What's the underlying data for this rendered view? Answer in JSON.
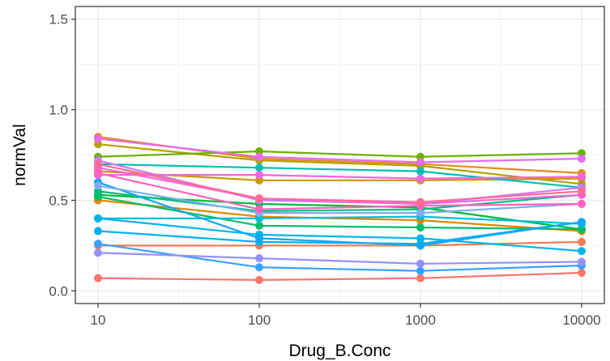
{
  "chart_data": {
    "type": "line",
    "title": "",
    "xlabel": "Drug_B.Conc",
    "ylabel": "normVal",
    "x_scale": "log10",
    "x": [
      10,
      100,
      1000,
      10000
    ],
    "x_tick_labels": [
      "10",
      "100",
      "1000",
      "10000"
    ],
    "y_ticks": [
      0.0,
      0.5,
      1.0,
      1.5
    ],
    "y_tick_labels": [
      "0.0",
      "0.5",
      "1.0",
      "1.5"
    ],
    "ylim": [
      -0.07,
      1.57
    ],
    "xlim": [
      10,
      10000
    ],
    "grid": true,
    "legend": "none",
    "series": [
      {
        "color": "#F8766D",
        "values": [
          0.07,
          0.06,
          0.07,
          0.1
        ]
      },
      {
        "color": "#F07D55",
        "values": [
          0.25,
          0.25,
          0.25,
          0.27
        ]
      },
      {
        "color": "#E58700",
        "values": [
          0.5,
          0.41,
          0.39,
          0.33
        ]
      },
      {
        "color": "#E08B20",
        "values": [
          0.85,
          0.73,
          0.7,
          0.65
        ]
      },
      {
        "color": "#C99800",
        "values": [
          0.66,
          0.61,
          0.61,
          0.62
        ]
      },
      {
        "color": "#B4A000",
        "values": [
          0.81,
          0.72,
          0.69,
          0.59
        ]
      },
      {
        "color": "#6BB100",
        "values": [
          0.74,
          0.77,
          0.74,
          0.76
        ]
      },
      {
        "color": "#00BA38",
        "values": [
          0.53,
          0.48,
          0.46,
          0.34
        ]
      },
      {
        "color": "#00BE6C",
        "values": [
          0.52,
          0.36,
          0.35,
          0.34
        ]
      },
      {
        "color": "#00BF7D",
        "values": [
          0.55,
          0.44,
          0.45,
          0.53
        ]
      },
      {
        "color": "#00C0AF",
        "values": [
          0.7,
          0.68,
          0.66,
          0.57
        ]
      },
      {
        "color": "#00BCD8",
        "values": [
          0.4,
          0.4,
          0.41,
          0.37
        ]
      },
      {
        "color": "#00B5EA",
        "values": [
          0.4,
          0.31,
          0.29,
          0.22
        ]
      },
      {
        "color": "#00B0F6",
        "values": [
          0.33,
          0.27,
          0.26,
          0.38
        ]
      },
      {
        "color": "#10A8F5",
        "values": [
          0.6,
          0.29,
          0.25,
          0.38
        ]
      },
      {
        "color": "#35A2FF",
        "values": [
          0.26,
          0.13,
          0.11,
          0.14
        ]
      },
      {
        "color": "#7CAEF0",
        "values": [
          0.58,
          0.43,
          0.43,
          0.48
        ]
      },
      {
        "color": "#9590FF",
        "values": [
          0.21,
          0.18,
          0.15,
          0.16
        ]
      },
      {
        "color": "#C77CFF",
        "values": [
          0.72,
          0.5,
          0.48,
          0.57
        ]
      },
      {
        "color": "#E76BF3",
        "values": [
          0.84,
          0.74,
          0.71,
          0.73
        ]
      },
      {
        "color": "#F564E3",
        "values": [
          0.64,
          0.64,
          0.62,
          0.63
        ]
      },
      {
        "color": "#FA62DB",
        "values": [
          0.68,
          0.51,
          0.48,
          0.53
        ]
      },
      {
        "color": "#FF62BC",
        "values": [
          0.65,
          0.45,
          0.47,
          0.48
        ]
      },
      {
        "color": "#FF6C91",
        "values": [
          0.7,
          0.51,
          0.49,
          0.55
        ]
      }
    ]
  }
}
